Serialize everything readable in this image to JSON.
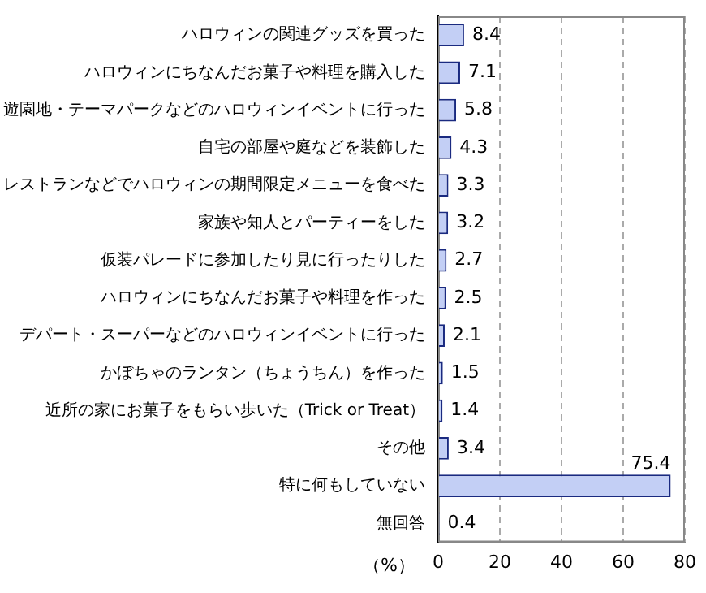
{
  "chart_data": {
    "type": "bar",
    "orientation": "horizontal",
    "categories": [
      "ハロウィンの関連グッズを買った",
      "ハロウィンにちなんだお菓子や料理を購入した",
      "遊園地・テーマパークなどのハロウィンイベントに行った",
      "自宅の部屋や庭などを装飾した",
      "レストランなどでハロウィンの期間限定メニューを食べた",
      "家族や知人とパーティーをした",
      "仮装パレードに参加したり見に行ったりした",
      "ハロウィンにちなんだお菓子や料理を作った",
      "デパート・スーパーなどのハロウィンイベントに行った",
      "かぼちゃのランタン（ちょうちん）を作った",
      "近所の家にお菓子をもらい歩いた（Trick or Treat）",
      "その他",
      "特に何もしていない",
      "無回答"
    ],
    "values": [
      8.4,
      7.1,
      5.8,
      4.3,
      3.3,
      3.2,
      2.7,
      2.5,
      2.1,
      1.5,
      1.4,
      3.4,
      75.4,
      0.4
    ],
    "color": "#c3cff5",
    "xlabel": "（%）",
    "xlim": [
      0,
      80
    ],
    "xticks": [
      0,
      20,
      40,
      60,
      80
    ],
    "grid": "x",
    "data_labels": true
  }
}
